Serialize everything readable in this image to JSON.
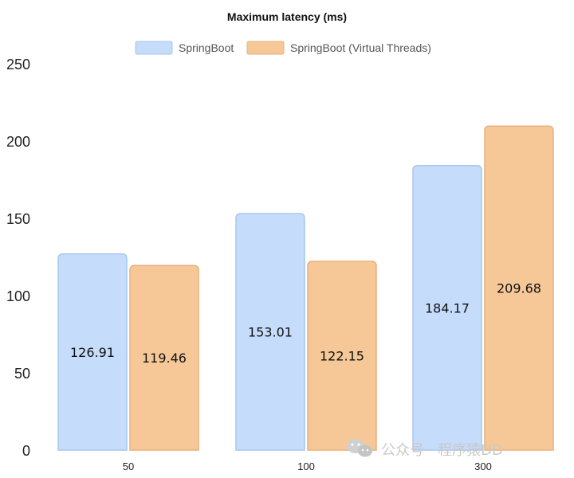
{
  "chart_data": {
    "type": "bar",
    "title": "Maximum latency (ms)",
    "categories": [
      "50",
      "100",
      "300"
    ],
    "series": [
      {
        "name": "SpringBoot",
        "values": [
          126.91,
          153.01,
          184.17
        ],
        "color": "#c5dcfb",
        "stroke": "#a8c6ef"
      },
      {
        "name": "SpringBoot (Virtual Threads)",
        "values": [
          119.46,
          122.15,
          209.68
        ],
        "color": "#f6c898",
        "stroke": "#e9b07c"
      }
    ],
    "ylim": [
      0,
      250
    ],
    "yticks": [
      0,
      50,
      100,
      150,
      200,
      250
    ],
    "grid": false,
    "legend_position": "top-center",
    "data_labels": true
  },
  "watermark": {
    "text": "公众号 · 程序猿DD",
    "icon": "wechat-icon"
  }
}
